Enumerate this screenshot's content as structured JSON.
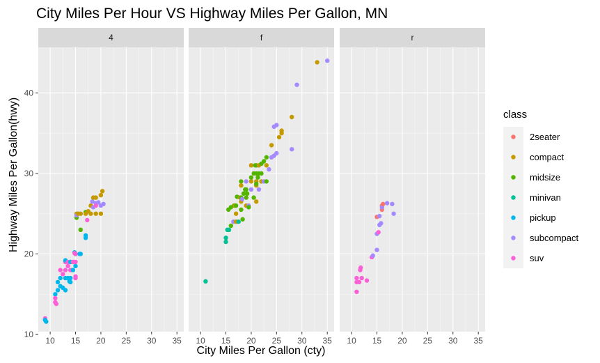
{
  "chart_data": {
    "type": "scatter",
    "title": "City Miles Per Hour VS Highway Miles Per Gallon, MN",
    "xlabel": "City Miles Per Gallon (cty)",
    "ylabel": "Highway Miles Per Gallon(hwy)",
    "xlim": [
      7.65,
      36.35
    ],
    "ylim": [
      10.35,
      45.65
    ],
    "x_ticks": [
      10,
      15,
      20,
      25,
      30,
      35
    ],
    "y_ticks": [
      10,
      20,
      30,
      40
    ],
    "grid": true,
    "legend_title": "class",
    "legend_position": "right",
    "facets": [
      "4",
      "f",
      "r"
    ],
    "classes": [
      {
        "name": "2seater",
        "color": "#F8766D"
      },
      {
        "name": "compact",
        "color": "#C49A00"
      },
      {
        "name": "midsize",
        "color": "#53B400"
      },
      {
        "name": "minivan",
        "color": "#00C094"
      },
      {
        "name": "pickup",
        "color": "#00B6EB"
      },
      {
        "name": "subcompact",
        "color": "#A58AFF"
      },
      {
        "name": "suv",
        "color": "#FB61D7"
      }
    ],
    "panels": [
      {
        "facet": "4",
        "points": [
          [
            9,
            12,
            "suv"
          ],
          [
            9,
            11.8,
            "pickup"
          ],
          [
            9.2,
            11.6,
            "pickup"
          ],
          [
            11,
            15,
            "pickup"
          ],
          [
            11,
            14.5,
            "suv"
          ],
          [
            11,
            14,
            "suv"
          ],
          [
            11.2,
            13.8,
            "suv"
          ],
          [
            11.5,
            15.5,
            "pickup"
          ],
          [
            11.5,
            16.5,
            "pickup"
          ],
          [
            12,
            16,
            "pickup"
          ],
          [
            12,
            17,
            "pickup"
          ],
          [
            12,
            18,
            "suv"
          ],
          [
            12.5,
            15.8,
            "pickup"
          ],
          [
            12.5,
            17.5,
            "suv"
          ],
          [
            13,
            15.5,
            "pickup"
          ],
          [
            13,
            17,
            "pickup"
          ],
          [
            13,
            19,
            "suv"
          ],
          [
            13,
            19.2,
            "pickup"
          ],
          [
            13,
            18,
            "suv"
          ],
          [
            13.5,
            17,
            "pickup"
          ],
          [
            13.5,
            18.5,
            "suv"
          ],
          [
            13.5,
            19,
            "suv"
          ],
          [
            13.8,
            16.6,
            "pickup"
          ],
          [
            14,
            17,
            "pickup"
          ],
          [
            14,
            18,
            "suv"
          ],
          [
            14,
            19,
            "suv"
          ],
          [
            14,
            16.5,
            "pickup"
          ],
          [
            14,
            19,
            "pickup"
          ],
          [
            14.5,
            18,
            "pickup"
          ],
          [
            14.5,
            19,
            "suv"
          ],
          [
            14.8,
            20.2,
            "pickup"
          ],
          [
            14.8,
            20.1,
            "suv"
          ],
          [
            15,
            18.5,
            "pickup"
          ],
          [
            15,
            19,
            "suv"
          ],
          [
            15,
            17,
            "suv"
          ],
          [
            15,
            20,
            "pickup"
          ],
          [
            15,
            20,
            "suv"
          ],
          [
            15,
            17.2,
            "suv"
          ],
          [
            15.2,
            24.5,
            "midsize"
          ],
          [
            15.2,
            25,
            "compact"
          ],
          [
            15.2,
            24.8,
            "subcompact"
          ],
          [
            15.5,
            25,
            "compact"
          ],
          [
            15.8,
            20,
            "pickup"
          ],
          [
            16,
            20,
            "pickup"
          ],
          [
            16,
            23,
            "midsize"
          ],
          [
            16,
            25,
            "compact"
          ],
          [
            17,
            25.2,
            "midsize"
          ],
          [
            17,
            25,
            "compact"
          ],
          [
            17,
            22,
            "pickup"
          ],
          [
            17,
            22.3,
            "pickup"
          ],
          [
            17.3,
            24.2,
            "suv"
          ],
          [
            17.5,
            25.3,
            "compact"
          ],
          [
            18,
            26,
            "compact"
          ],
          [
            18,
            25,
            "compact"
          ],
          [
            18.3,
            26.5,
            "subcompact"
          ],
          [
            18.5,
            27,
            "compact"
          ],
          [
            18.5,
            25.8,
            "subcompact"
          ],
          [
            19,
            27,
            "compact"
          ],
          [
            19,
            25,
            "compact"
          ],
          [
            19,
            26.3,
            "subcompact"
          ],
          [
            19,
            26,
            "suv"
          ],
          [
            19.5,
            26.4,
            "subcompact"
          ],
          [
            20,
            26,
            "subcompact"
          ],
          [
            20,
            25,
            "compact"
          ],
          [
            20,
            27.3,
            "compact"
          ],
          [
            20.3,
            27.8,
            "compact"
          ],
          [
            20.5,
            26.2,
            "subcompact"
          ]
        ]
      },
      {
        "facet": "f",
        "points": [
          [
            11,
            16.6,
            "minivan"
          ],
          [
            15,
            21.5,
            "minivan"
          ],
          [
            15,
            22,
            "minivan"
          ],
          [
            15.3,
            23,
            "minivan"
          ],
          [
            15.5,
            25.5,
            "midsize"
          ],
          [
            15.6,
            23,
            "minivan"
          ],
          [
            16,
            25.8,
            "midsize"
          ],
          [
            16,
            23.5,
            "midsize"
          ],
          [
            16.5,
            24,
            "subcompact"
          ],
          [
            16.6,
            26,
            "midsize"
          ],
          [
            16.8,
            26,
            "compact"
          ],
          [
            17,
            24,
            "compact"
          ],
          [
            17,
            25,
            "compact"
          ],
          [
            17,
            26,
            "midsize"
          ],
          [
            17.2,
            27.1,
            "midsize"
          ],
          [
            17.5,
            24,
            "minivan"
          ],
          [
            17.8,
            27,
            "compact"
          ],
          [
            18,
            26.5,
            "compact"
          ],
          [
            18,
            29,
            "midsize"
          ],
          [
            18,
            27,
            "midsize"
          ],
          [
            18,
            28.5,
            "compact"
          ],
          [
            18,
            25.5,
            "midsize"
          ],
          [
            18.2,
            26.8,
            "subcompact"
          ],
          [
            18.3,
            24.3,
            "midsize"
          ],
          [
            18.5,
            27.5,
            "midsize"
          ],
          [
            18.8,
            28,
            "midsize"
          ],
          [
            19,
            26,
            "compact"
          ],
          [
            19,
            27,
            "midsize"
          ],
          [
            19,
            28,
            "midsize"
          ],
          [
            19,
            29,
            "subcompact"
          ],
          [
            19.2,
            27.5,
            "midsize"
          ],
          [
            19.5,
            26,
            "subcompact"
          ],
          [
            19.5,
            25.8,
            "midsize"
          ],
          [
            20,
            29,
            "compact"
          ],
          [
            20,
            31,
            "compact"
          ],
          [
            20,
            29.5,
            "midsize"
          ],
          [
            20,
            28,
            "subcompact"
          ],
          [
            20.5,
            27,
            "midsize"
          ],
          [
            20.5,
            30,
            "midsize"
          ],
          [
            20.8,
            31,
            "midsize"
          ],
          [
            21,
            29,
            "compact"
          ],
          [
            21,
            30,
            "midsize"
          ],
          [
            21,
            28.5,
            "compact"
          ],
          [
            21,
            31,
            "midsize"
          ],
          [
            21,
            28.7,
            "midsize"
          ],
          [
            21,
            26.5,
            "compact"
          ],
          [
            21.3,
            29.5,
            "midsize"
          ],
          [
            21.5,
            30,
            "midsize"
          ],
          [
            21.5,
            31,
            "compact"
          ],
          [
            21.5,
            28,
            "subcompact"
          ],
          [
            22,
            29,
            "compact"
          ],
          [
            22,
            31.2,
            "midsize"
          ],
          [
            22,
            30,
            "midsize"
          ],
          [
            22.5,
            31.5,
            "midsize"
          ],
          [
            22.5,
            29,
            "subcompact"
          ],
          [
            23,
            29,
            "midsize"
          ],
          [
            23,
            31,
            "compact"
          ],
          [
            23,
            32,
            "midsize"
          ],
          [
            23.5,
            30.5,
            "subcompact"
          ],
          [
            24,
            32,
            "subcompact"
          ],
          [
            24,
            33.5,
            "compact"
          ],
          [
            24.5,
            32.2,
            "subcompact"
          ],
          [
            24.5,
            35.8,
            "subcompact"
          ],
          [
            25,
            36,
            "subcompact"
          ],
          [
            25,
            32.5,
            "subcompact"
          ],
          [
            25.5,
            34.5,
            "compact"
          ],
          [
            26,
            35,
            "compact"
          ],
          [
            26,
            35.3,
            "compact"
          ],
          [
            28,
            33,
            "subcompact"
          ],
          [
            28,
            37,
            "compact"
          ],
          [
            29,
            41,
            "subcompact"
          ],
          [
            33,
            43.8,
            "compact"
          ],
          [
            35,
            44,
            "subcompact"
          ]
        ]
      },
      {
        "facet": "r",
        "points": [
          [
            11,
            15.3,
            "suv"
          ],
          [
            11,
            16.5,
            "suv"
          ],
          [
            11,
            17,
            "suv"
          ],
          [
            11.5,
            16.5,
            "suv"
          ],
          [
            11.7,
            18,
            "suv"
          ],
          [
            11.8,
            18.3,
            "suv"
          ],
          [
            12,
            17,
            "suv"
          ],
          [
            13,
            16.7,
            "suv"
          ],
          [
            14,
            19.6,
            "suv"
          ],
          [
            14.2,
            19.8,
            "subcompact"
          ],
          [
            15,
            20.5,
            "subcompact"
          ],
          [
            15,
            22.5,
            "subcompact"
          ],
          [
            15,
            24.6,
            "2seater"
          ],
          [
            15.3,
            22.7,
            "suv"
          ],
          [
            15.5,
            23.6,
            "subcompact"
          ],
          [
            15.5,
            24.7,
            "subcompact"
          ],
          [
            15.8,
            23.8,
            "subcompact"
          ],
          [
            16,
            25.5,
            "2seater"
          ],
          [
            16,
            26,
            "2seater"
          ],
          [
            16,
            25.8,
            "subcompact"
          ],
          [
            16.2,
            26.2,
            "2seater"
          ],
          [
            17,
            26.3,
            "subcompact"
          ],
          [
            18,
            26.2,
            "subcompact"
          ],
          [
            18.3,
            25,
            "subcompact"
          ]
        ]
      }
    ]
  }
}
